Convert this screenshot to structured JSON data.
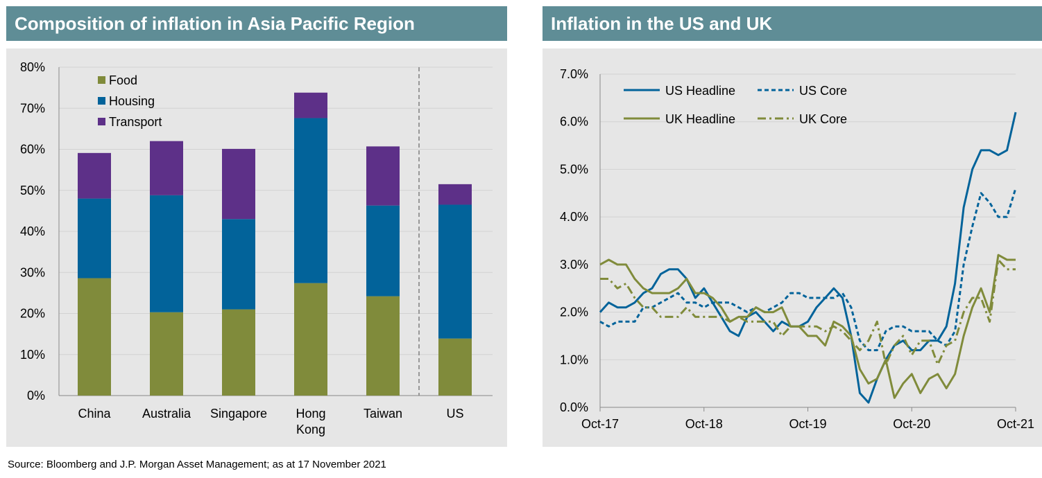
{
  "left_title": "Composition of inflation in Asia Pacific Region",
  "right_title": "Inflation in the US and UK",
  "source": "Source: Bloomberg and J.P. Morgan Asset Management; as at 17 November 2021",
  "chart_data": [
    {
      "type": "bar",
      "stacked": true,
      "title": "Composition of inflation in Asia Pacific Region",
      "categories": [
        "China",
        "Australia",
        "Singapore",
        "Hong Kong",
        "Taiwan",
        "US"
      ],
      "series": [
        {
          "name": "Food",
          "color": "#808b3b",
          "values": [
            28.6,
            20.3,
            21.0,
            27.4,
            24.2,
            13.9
          ]
        },
        {
          "name": "Housing",
          "color": "#02639a",
          "values": [
            19.4,
            28.5,
            22.0,
            40.2,
            22.1,
            32.6
          ]
        },
        {
          "name": "Transport",
          "color": "#5d3088",
          "values": [
            11.1,
            13.2,
            17.1,
            6.2,
            14.4,
            5.0
          ]
        }
      ],
      "ylim": [
        0,
        80
      ],
      "yticks": [
        "0%",
        "10%",
        "20%",
        "30%",
        "40%",
        "50%",
        "60%",
        "70%",
        "80%"
      ],
      "legend_position": "top-left",
      "grid": true,
      "separator_before": "US"
    },
    {
      "type": "line",
      "title": "Inflation in the US and UK",
      "x_start": "Oct-17",
      "x_end": "Oct-21",
      "x_tick_labels": [
        "Oct-17",
        "Oct-18",
        "Oct-19",
        "Oct-20",
        "Oct-21"
      ],
      "ylim": [
        0,
        7
      ],
      "yticks": [
        "0.0%",
        "1.0%",
        "2.0%",
        "3.0%",
        "4.0%",
        "5.0%",
        "6.0%",
        "7.0%"
      ],
      "legend_position": "top-left",
      "grid": true,
      "series": [
        {
          "name": "US Headline",
          "color": "#02639a",
          "dash": "solid",
          "values": [
            2.0,
            2.2,
            2.1,
            2.1,
            2.2,
            2.4,
            2.5,
            2.8,
            2.9,
            2.9,
            2.7,
            2.3,
            2.5,
            2.2,
            1.9,
            1.6,
            1.5,
            1.9,
            2.0,
            1.8,
            1.6,
            1.8,
            1.7,
            1.7,
            1.8,
            2.1,
            2.3,
            2.5,
            2.3,
            1.5,
            0.3,
            0.1,
            0.6,
            1.0,
            1.3,
            1.4,
            1.2,
            1.2,
            1.4,
            1.4,
            1.7,
            2.6,
            4.2,
            5.0,
            5.4,
            5.4,
            5.3,
            5.4,
            6.2
          ]
        },
        {
          "name": "US Core",
          "color": "#02639a",
          "dash": "dashed",
          "values": [
            1.8,
            1.7,
            1.8,
            1.8,
            1.8,
            2.1,
            2.1,
            2.2,
            2.3,
            2.4,
            2.2,
            2.2,
            2.1,
            2.2,
            2.2,
            2.2,
            2.1,
            2.0,
            2.1,
            2.0,
            2.1,
            2.2,
            2.4,
            2.4,
            2.3,
            2.3,
            2.3,
            2.3,
            2.4,
            2.1,
            1.4,
            1.2,
            1.2,
            1.6,
            1.7,
            1.7,
            1.6,
            1.6,
            1.6,
            1.4,
            1.3,
            1.6,
            3.0,
            3.8,
            4.5,
            4.3,
            4.0,
            4.0,
            4.6
          ]
        },
        {
          "name": "UK Headline",
          "color": "#808b3b",
          "dash": "solid",
          "values": [
            3.0,
            3.1,
            3.0,
            3.0,
            2.7,
            2.5,
            2.4,
            2.4,
            2.4,
            2.5,
            2.7,
            2.4,
            2.4,
            2.3,
            2.1,
            1.8,
            1.9,
            1.9,
            2.1,
            2.0,
            2.0,
            2.1,
            1.7,
            1.7,
            1.5,
            1.5,
            1.3,
            1.8,
            1.7,
            1.5,
            0.8,
            0.5,
            0.6,
            1.0,
            0.2,
            0.5,
            0.7,
            0.3,
            0.6,
            0.7,
            0.4,
            0.7,
            1.5,
            2.1,
            2.5,
            2.0,
            3.2,
            3.1,
            3.1
          ]
        },
        {
          "name": "UK Core",
          "color": "#808b3b",
          "dash": "dash-dot",
          "values": [
            2.7,
            2.7,
            2.5,
            2.6,
            2.3,
            2.1,
            2.1,
            1.9,
            1.9,
            1.9,
            2.1,
            1.9,
            1.9,
            1.9,
            1.9,
            1.8,
            1.9,
            1.8,
            1.8,
            1.8,
            1.8,
            1.5,
            1.7,
            1.7,
            1.7,
            1.7,
            1.6,
            1.7,
            1.6,
            1.4,
            1.2,
            1.4,
            1.8,
            0.9,
            1.3,
            1.5,
            1.1,
            1.4,
            1.4,
            0.9,
            1.3,
            1.4,
            2.0,
            2.3,
            2.3,
            1.8,
            3.1,
            2.9,
            2.9
          ]
        }
      ]
    }
  ]
}
